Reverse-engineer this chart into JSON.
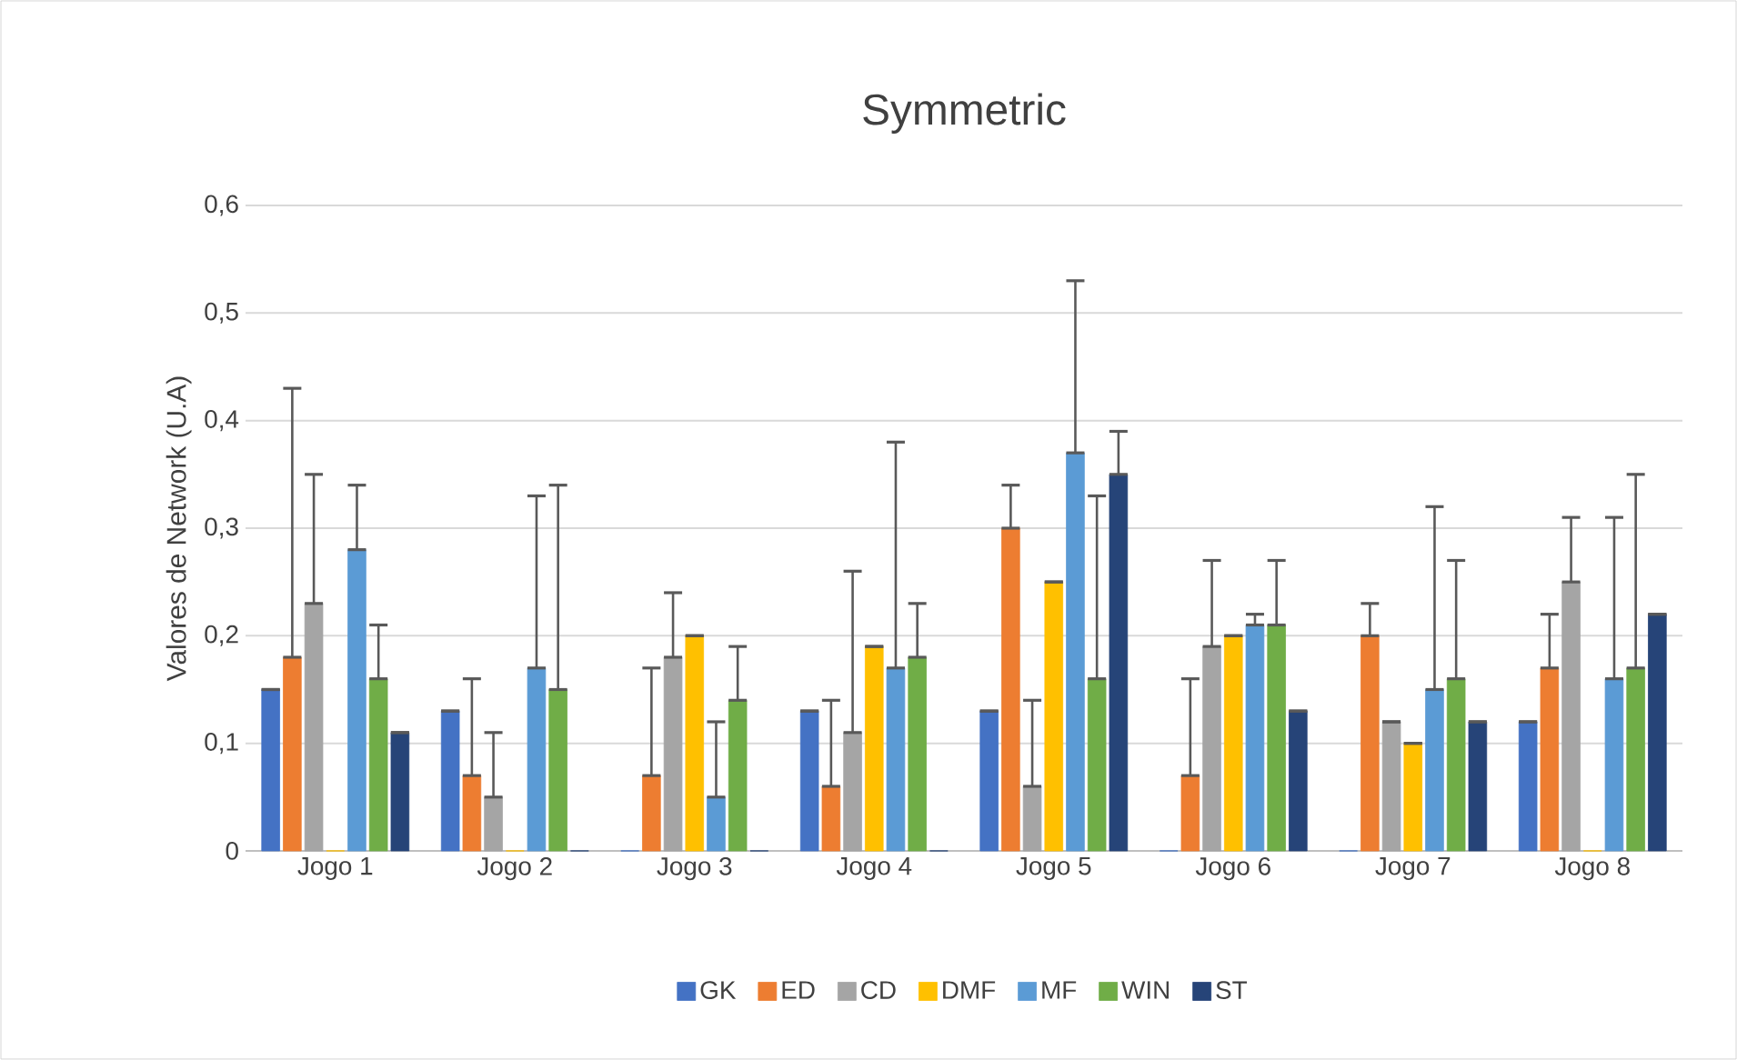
{
  "chart_data": {
    "type": "bar",
    "title": "Symmetric",
    "ylabel": "Valores de Network (U.A)",
    "categories": [
      "Jogo 1",
      "Jogo 2",
      "Jogo 3",
      "Jogo 4",
      "Jogo 5",
      "Jogo 6",
      "Jogo 7",
      "Jogo 8"
    ],
    "series": [
      {
        "name": "GK",
        "color": "#4472c4",
        "values": [
          0.15,
          0.13,
          0,
          0.13,
          0.13,
          0,
          0,
          0.12
        ],
        "errors": [
          [
            0.15,
            0.15
          ],
          [
            0.13,
            0.13
          ],
          null,
          [
            0.13,
            0.13
          ],
          [
            0.13,
            0.13
          ],
          null,
          null,
          [
            0.12,
            0.12
          ]
        ]
      },
      {
        "name": "ED",
        "color": "#ed7d31",
        "values": [
          0.18,
          0.07,
          0.07,
          0.06,
          0.3,
          0.07,
          0.2,
          0.17
        ],
        "errors": [
          [
            0.18,
            0.43
          ],
          [
            0.07,
            0.16
          ],
          [
            0.07,
            0.17
          ],
          [
            0.06,
            0.14
          ],
          [
            0.3,
            0.34
          ],
          [
            0.07,
            0.16
          ],
          [
            0.2,
            0.23
          ],
          [
            0.17,
            0.22
          ]
        ]
      },
      {
        "name": "CD",
        "color": "#a5a5a5",
        "values": [
          0.23,
          0.05,
          0.18,
          0.11,
          0.06,
          0.19,
          0.12,
          0.25
        ],
        "errors": [
          [
            0.23,
            0.35
          ],
          [
            0.05,
            0.11
          ],
          [
            0.18,
            0.24
          ],
          [
            0.11,
            0.26
          ],
          [
            0.06,
            0.14
          ],
          [
            0.19,
            0.27
          ],
          [
            0.12,
            0.12
          ],
          [
            0.25,
            0.31
          ]
        ]
      },
      {
        "name": "DMF",
        "color": "#ffc000",
        "values": [
          0,
          0,
          0.2,
          0.19,
          0.25,
          0.2,
          0.1,
          0
        ],
        "errors": [
          null,
          null,
          [
            0.2,
            0.2
          ],
          [
            0.19,
            0.19
          ],
          [
            0.25,
            0.25
          ],
          [
            0.2,
            0.2
          ],
          [
            0.1,
            0.1
          ],
          null
        ]
      },
      {
        "name": "MF",
        "color": "#5b9bd5",
        "values": [
          0.28,
          0.17,
          0.05,
          0.17,
          0.37,
          0.21,
          0.15,
          0.16
        ],
        "errors": [
          [
            0.28,
            0.34
          ],
          [
            0.17,
            0.33
          ],
          [
            0.05,
            0.12
          ],
          [
            0.17,
            0.38
          ],
          [
            0.37,
            0.53
          ],
          [
            0.21,
            0.22
          ],
          [
            0.15,
            0.32
          ],
          [
            0.16,
            0.31
          ]
        ]
      },
      {
        "name": "WIN",
        "color": "#70ad47",
        "values": [
          0.16,
          0.15,
          0.14,
          0.18,
          0.16,
          0.21,
          0.16,
          0.17
        ],
        "errors": [
          [
            0.16,
            0.21
          ],
          [
            0.15,
            0.34
          ],
          [
            0.14,
            0.19
          ],
          [
            0.18,
            0.23
          ],
          [
            0.16,
            0.33
          ],
          [
            0.21,
            0.27
          ],
          [
            0.16,
            0.27
          ],
          [
            0.17,
            0.35
          ]
        ]
      },
      {
        "name": "ST",
        "color": "#264478",
        "values": [
          0.11,
          0,
          0,
          0,
          0.35,
          0.13,
          0.12,
          0.22
        ],
        "errors": [
          [
            0.11,
            0.11
          ],
          null,
          null,
          null,
          [
            0.35,
            0.39
          ],
          [
            0.13,
            0.13
          ],
          [
            0.12,
            0.12
          ],
          [
            0.22,
            0.22
          ]
        ]
      }
    ],
    "ylim": [
      0,
      0.6
    ],
    "yticks": [
      0,
      {
        "value": 0.1,
        "label": "0,1"
      },
      {
        "value": 0.2,
        "label": "0,2"
      },
      {
        "value": 0.3,
        "label": "0,3"
      },
      {
        "value": 0.4,
        "label": "0,4"
      },
      {
        "value": 0.5,
        "label": "0,5"
      },
      {
        "value": 0.6,
        "label": "0,6"
      }
    ],
    "grid": "y",
    "legend": "bottom"
  }
}
